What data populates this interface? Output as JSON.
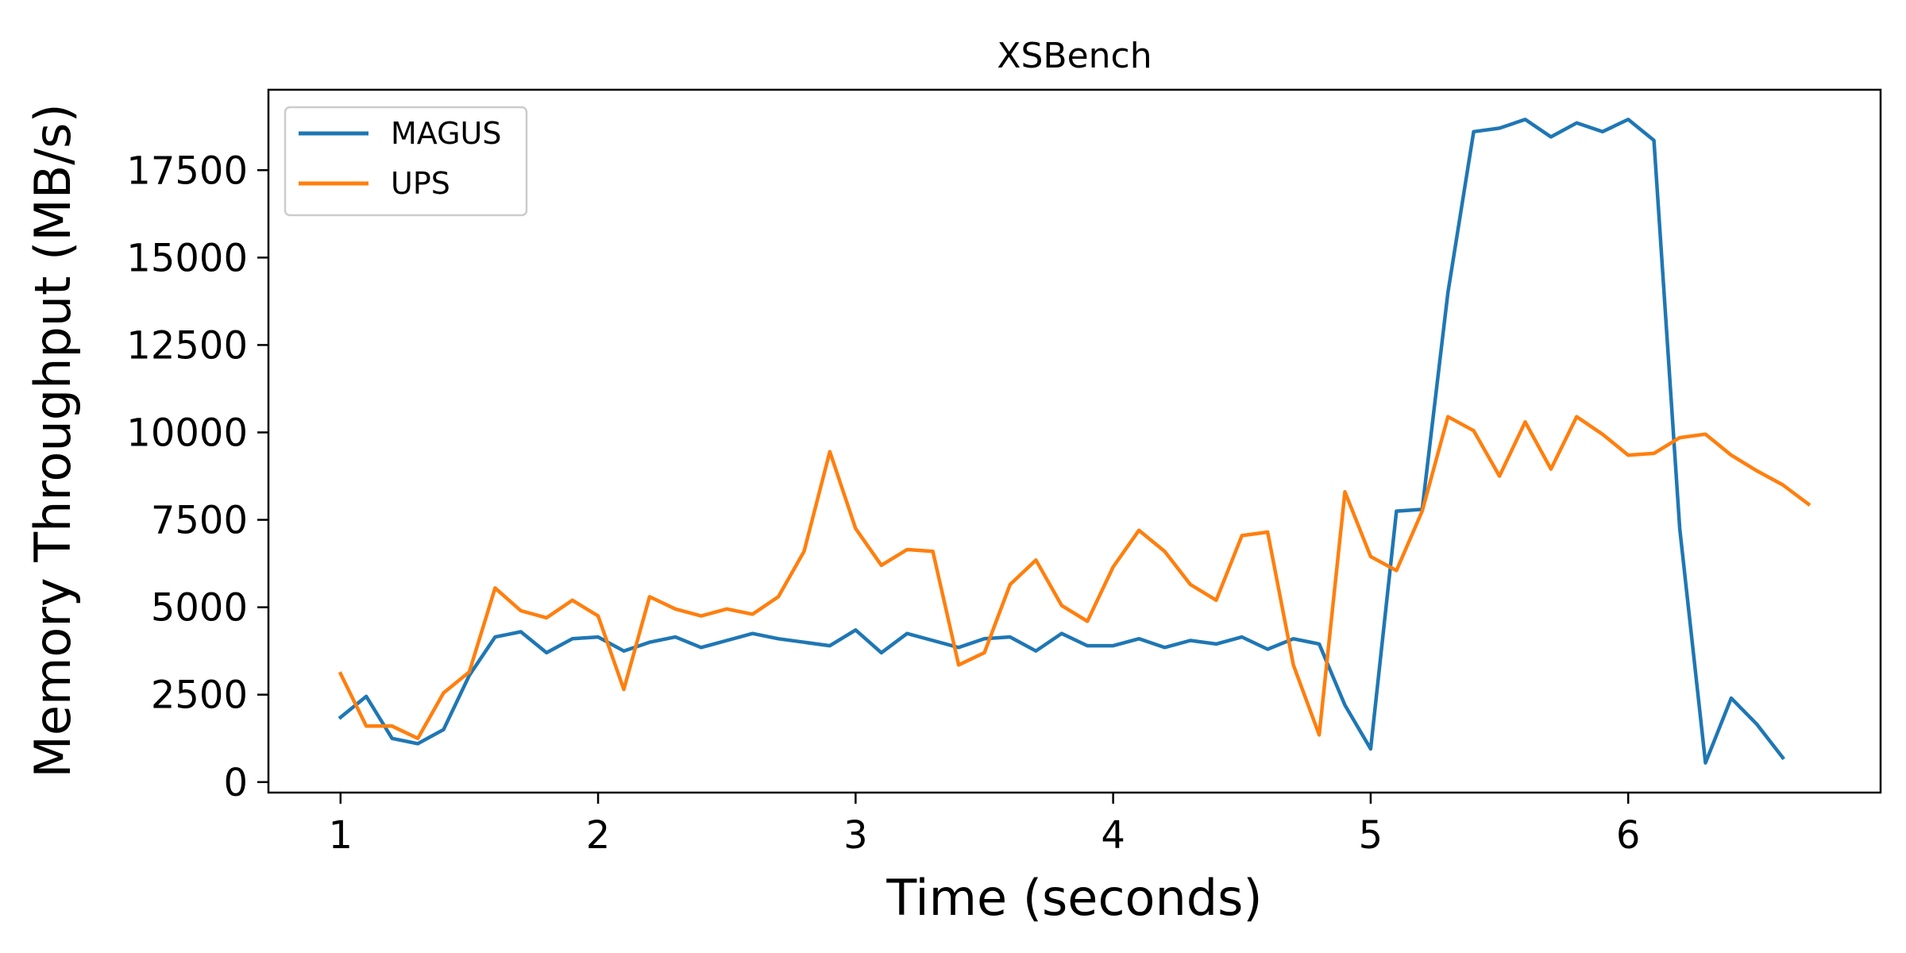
{
  "chart_data": {
    "type": "line",
    "title": "XSBench",
    "xlabel": "Time (seconds)",
    "ylabel": "Memory Throughput (MB/s)",
    "xlim": [
      0.72,
      6.98
    ],
    "ylim": [
      -300,
      19800
    ],
    "xticks": [
      1,
      2,
      3,
      4,
      5,
      6
    ],
    "yticks": [
      0,
      2500,
      5000,
      7500,
      10000,
      12500,
      15000,
      17500
    ],
    "legend_position": "top-left",
    "grid": false,
    "series": [
      {
        "name": "MAGUS",
        "color": "#1f77b4",
        "x": [
          1.0,
          1.1,
          1.2,
          1.3,
          1.4,
          1.5,
          1.6,
          1.7,
          1.8,
          1.9,
          2.0,
          2.1,
          2.2,
          2.3,
          2.4,
          2.5,
          2.6,
          2.7,
          2.8,
          2.9,
          3.0,
          3.1,
          3.2,
          3.3,
          3.4,
          3.5,
          3.6,
          3.7,
          3.8,
          3.9,
          4.0,
          4.1,
          4.2,
          4.3,
          4.4,
          4.5,
          4.6,
          4.7,
          4.8,
          4.9,
          5.0,
          5.1,
          5.2,
          5.3,
          5.4,
          5.5,
          5.6,
          5.7,
          5.8,
          5.9,
          6.0,
          6.1,
          6.2,
          6.3,
          6.4,
          6.5,
          6.6
        ],
        "y": [
          1850,
          2450,
          1250,
          1100,
          1500,
          3050,
          4150,
          4300,
          3700,
          4100,
          4150,
          3750,
          4000,
          4150,
          3850,
          4050,
          4250,
          4100,
          4000,
          3900,
          4350,
          3700,
          4250,
          4050,
          3850,
          4100,
          4150,
          3750,
          4250,
          3900,
          3900,
          4100,
          3850,
          4050,
          3950,
          4150,
          3800,
          4100,
          3950,
          2200,
          950,
          7750,
          7800,
          14000,
          18600,
          18700,
          18950,
          18450,
          18850,
          18600,
          18950,
          18350,
          7250,
          550,
          2400,
          1650,
          700
        ]
      },
      {
        "name": "UPS",
        "color": "#ff7f0e",
        "x": [
          1.0,
          1.1,
          1.2,
          1.3,
          1.4,
          1.5,
          1.6,
          1.7,
          1.8,
          1.9,
          2.0,
          2.1,
          2.2,
          2.3,
          2.4,
          2.5,
          2.6,
          2.7,
          2.8,
          2.9,
          3.0,
          3.1,
          3.2,
          3.3,
          3.4,
          3.5,
          3.6,
          3.7,
          3.8,
          3.9,
          4.0,
          4.1,
          4.2,
          4.3,
          4.4,
          4.5,
          4.6,
          4.7,
          4.8,
          4.9,
          5.0,
          5.1,
          5.2,
          5.3,
          5.4,
          5.5,
          5.6,
          5.7,
          5.8,
          5.9,
          6.0,
          6.1,
          6.2,
          6.3,
          6.4,
          6.5,
          6.6,
          6.7
        ],
        "y": [
          3100,
          1600,
          1600,
          1250,
          2550,
          3150,
          5550,
          4900,
          4700,
          5200,
          4750,
          2650,
          5300,
          4950,
          4750,
          4950,
          4800,
          5300,
          6600,
          9450,
          7250,
          6200,
          6650,
          6600,
          3350,
          3700,
          5650,
          6350,
          5050,
          4600,
          6150,
          7200,
          6600,
          5650,
          5200,
          7050,
          7150,
          3350,
          1350,
          8300,
          6450,
          6050,
          7750,
          10450,
          10050,
          8750,
          10300,
          8950,
          10450,
          9950,
          9350,
          9400,
          9850,
          9950,
          9350,
          8900,
          8500,
          7950
        ]
      }
    ]
  }
}
